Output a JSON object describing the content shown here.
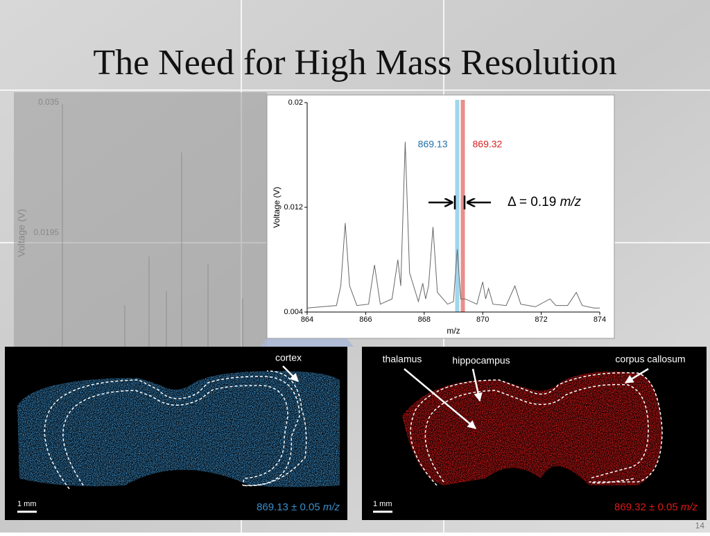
{
  "title": "The Need for High Mass Resolution",
  "background_chart": {
    "yticks": [
      0.035,
      0.0195
    ],
    "ylabel": "Voltage (V)"
  },
  "chart_data": {
    "type": "line",
    "x": [
      864,
      864.5,
      865,
      865.15,
      865.3,
      865.45,
      865.7,
      866.1,
      866.3,
      866.5,
      866.9,
      867.1,
      867.2,
      867.35,
      867.5,
      867.8,
      867.95,
      868.05,
      868.15,
      868.3,
      868.45,
      868.8,
      869.0,
      869.13,
      869.25,
      869.4,
      869.8,
      870.0,
      870.1,
      870.2,
      870.35,
      870.8,
      871.1,
      871.3,
      871.8,
      872.3,
      872.5,
      872.9,
      873.2,
      873.4,
      873.8,
      874
    ],
    "y": [
      0.0043,
      0.0044,
      0.0045,
      0.006,
      0.0108,
      0.006,
      0.0045,
      0.0046,
      0.0076,
      0.0046,
      0.005,
      0.008,
      0.006,
      0.017,
      0.007,
      0.0048,
      0.0062,
      0.005,
      0.006,
      0.0105,
      0.0055,
      0.0046,
      0.0048,
      0.0088,
      0.005,
      0.005,
      0.0046,
      0.0063,
      0.005,
      0.0058,
      0.0046,
      0.0045,
      0.006,
      0.0046,
      0.0044,
      0.005,
      0.0045,
      0.0045,
      0.0055,
      0.0045,
      0.0043,
      0.0043
    ],
    "color": "#666666",
    "xlim": [
      864,
      874
    ],
    "xticks": [
      864,
      866,
      868,
      870,
      872,
      874
    ],
    "ylim": [
      0.004,
      0.02
    ],
    "yticks": [
      0.004,
      0.012,
      0.02
    ],
    "xlabel": "m/z",
    "ylabel": "Voltage (V)",
    "highlights": [
      {
        "value": 869.13,
        "color": "#9fd6ea",
        "label_color": "#1f6fa8"
      },
      {
        "value": 869.32,
        "color": "#e8908c",
        "label_color": "#d81e1e"
      }
    ],
    "delta_label": "Δ = 0.19",
    "delta_unit": "m/z"
  },
  "panels": [
    {
      "labels": [
        "cortex"
      ],
      "scale": "1 mm",
      "caption": "869.13 ± 0.05",
      "caption_unit": "m/z"
    },
    {
      "labels": [
        "thalamus",
        "hippocampus",
        "corpus callosum"
      ],
      "scale": "1 mm",
      "caption": "869.32 ± 0.05",
      "caption_unit": "m/z"
    }
  ],
  "page_number": "14"
}
